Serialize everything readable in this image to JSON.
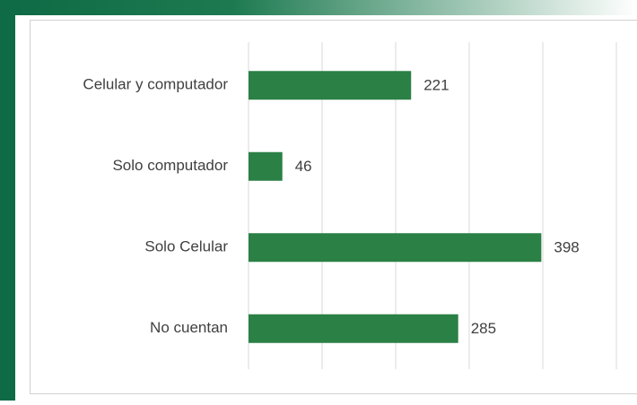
{
  "chart_data": {
    "type": "bar",
    "orientation": "horizontal",
    "categories": [
      "Celular y computador",
      "Solo computador",
      "Solo Celular",
      "No cuentan"
    ],
    "values": [
      221,
      46,
      398,
      285
    ],
    "color": "#2a8045",
    "xlim": [
      0,
      500
    ],
    "xticks": [
      0,
      100,
      200,
      300,
      400,
      500
    ],
    "grid": true
  }
}
